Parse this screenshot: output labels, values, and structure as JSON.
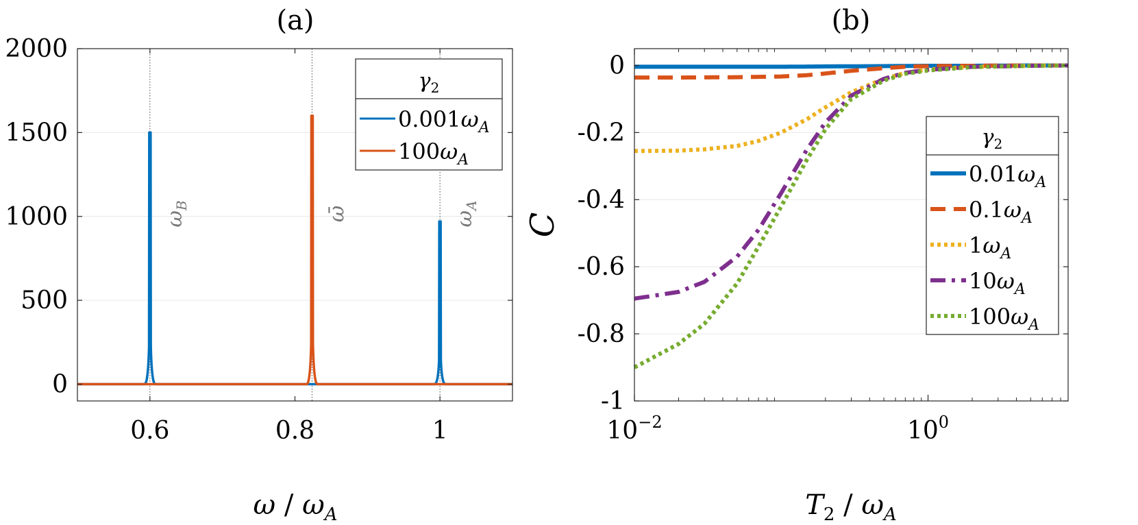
{
  "figure": {
    "panel_a_label": "(a)",
    "panel_b_label": "(b)"
  },
  "chart_data": [
    {
      "type": "line",
      "panel": "(a)",
      "title": "(a)",
      "xlabel": "ω / ω_A",
      "xlabel_parts": {
        "num": "ω",
        "sep": " / ",
        "den": "ω",
        "den_sub": "A"
      },
      "ylabel": "",
      "xlim": [
        0.5,
        1.1
      ],
      "ylim": [
        -100,
        2000
      ],
      "xticks": [
        0.6,
        0.8,
        1
      ],
      "xtick_labels": [
        "0.6",
        "0.8",
        "1"
      ],
      "yticks": [
        0,
        500,
        1000,
        1500,
        2000
      ],
      "ytick_labels": [
        "0",
        "500",
        "1000",
        "1500",
        "2000"
      ],
      "grid": "horizontal",
      "legend": {
        "placement": "top-right",
        "title": "γ2",
        "title_parts": {
          "sym": "γ",
          "sub": "2"
        },
        "entries": [
          {
            "label": "0.001ω_A",
            "coef": "0.001",
            "sym": "ω",
            "sub": "A",
            "color": "#0072BD",
            "style": "solid"
          },
          {
            "label": "100ω_A",
            "coef": "100",
            "sym": "ω",
            "sub": "A",
            "color": "#D95319",
            "style": "solid"
          }
        ]
      },
      "reference_lines": [
        {
          "x": 0.6,
          "label": "ω_B",
          "sym": "ω",
          "sub": "B"
        },
        {
          "x": 0.8236,
          "label": "ω̄",
          "sym": "ω̄",
          "sub": ""
        },
        {
          "x": 1.0,
          "label": "ω_A",
          "sym": "ω",
          "sub": "A"
        }
      ],
      "series": [
        {
          "name": "0.001ω_A",
          "color": "#0072BD",
          "baseline": 0,
          "peaks": [
            {
              "x": 0.6,
              "height": 1500
            },
            {
              "x": 1.0,
              "height": 970
            }
          ]
        },
        {
          "name": "100ω_A",
          "color": "#D95319",
          "baseline": 0,
          "peaks": [
            {
              "x": 0.8236,
              "height": 1600
            }
          ]
        }
      ]
    },
    {
      "type": "line",
      "panel": "(b)",
      "title": "(b)",
      "xlabel": "T_2 / ω_A",
      "xlabel_parts": {
        "num": "T",
        "num_sub": "2",
        "sep": " / ",
        "den": "ω",
        "den_sub": "A"
      },
      "ylabel": "C",
      "xscale": "log",
      "xlim": [
        0.01,
        9
      ],
      "ylim": [
        -1,
        0.05
      ],
      "xticks": [
        0.01,
        1
      ],
      "xtick_labels": [
        {
          "base": "10",
          "exp": "−2"
        },
        {
          "base": "10",
          "exp": "0"
        }
      ],
      "yticks": [
        0,
        -0.2,
        -0.4,
        -0.6,
        -0.8,
        -1
      ],
      "ytick_labels": [
        "0",
        "-0.2",
        "-0.4",
        "-0.6",
        "-0.8",
        "-1"
      ],
      "grid": "horizontal",
      "legend": {
        "placement": "right",
        "title": "γ2",
        "title_parts": {
          "sym": "γ",
          "sub": "2"
        },
        "entries": [
          {
            "label": "0.01ω_A",
            "coef": "0.01",
            "sym": "ω",
            "sub": "A",
            "color": "#0072BD",
            "style": "solid"
          },
          {
            "label": "0.1ω_A",
            "coef": "0.1",
            "sym": "ω",
            "sub": "A",
            "color": "#D95319",
            "style": "dashed"
          },
          {
            "label": "1ω_A",
            "coef": "1",
            "sym": "ω",
            "sub": "A",
            "color": "#EDB120",
            "style": "dotted"
          },
          {
            "label": "10ω_A",
            "coef": "10",
            "sym": "ω",
            "sub": "A",
            "color": "#7E2F8E",
            "style": "dashdot"
          },
          {
            "label": "100ω_A",
            "coef": "100",
            "sym": "ω",
            "sub": "A",
            "color": "#77AC30",
            "style": "dotted"
          }
        ]
      },
      "series": [
        {
          "name": "0.01ω_A",
          "color": "#0072BD",
          "style": "solid",
          "x": [
            0.01,
            0.02,
            0.05,
            0.1,
            0.2,
            0.5,
            1,
            2,
            5,
            9
          ],
          "y": [
            -0.004,
            -0.004,
            -0.004,
            -0.004,
            -0.003,
            -0.002,
            -0.001,
            -0.001,
            0,
            0
          ]
        },
        {
          "name": "0.1ω_A",
          "color": "#D95319",
          "style": "dashed",
          "x": [
            0.01,
            0.02,
            0.05,
            0.1,
            0.15,
            0.2,
            0.3,
            0.5,
            0.7,
            1,
            2,
            5,
            9
          ],
          "y": [
            -0.036,
            -0.036,
            -0.035,
            -0.033,
            -0.029,
            -0.024,
            -0.016,
            -0.008,
            -0.004,
            -0.002,
            -0.001,
            0,
            0
          ]
        },
        {
          "name": "1ω_A",
          "color": "#EDB120",
          "style": "dotted",
          "x": [
            0.01,
            0.02,
            0.03,
            0.05,
            0.07,
            0.1,
            0.15,
            0.2,
            0.3,
            0.5,
            0.7,
            1,
            2,
            5,
            9
          ],
          "y": [
            -0.255,
            -0.254,
            -0.25,
            -0.24,
            -0.225,
            -0.2,
            -0.16,
            -0.125,
            -0.08,
            -0.04,
            -0.022,
            -0.012,
            -0.004,
            -0.001,
            0
          ]
        },
        {
          "name": "10ω_A",
          "color": "#7E2F8E",
          "style": "dashdot",
          "x": [
            0.01,
            0.02,
            0.03,
            0.05,
            0.07,
            0.1,
            0.15,
            0.2,
            0.3,
            0.5,
            0.7,
            1,
            2,
            5,
            9
          ],
          "y": [
            -0.695,
            -0.675,
            -0.645,
            -0.57,
            -0.49,
            -0.38,
            -0.25,
            -0.17,
            -0.09,
            -0.04,
            -0.022,
            -0.013,
            -0.004,
            -0.001,
            0
          ]
        },
        {
          "name": "100ω_A",
          "color": "#77AC30",
          "style": "dotted",
          "x": [
            0.01,
            0.02,
            0.03,
            0.05,
            0.07,
            0.1,
            0.15,
            0.2,
            0.3,
            0.5,
            0.7,
            1,
            2,
            5,
            9
          ],
          "y": [
            -0.9,
            -0.83,
            -0.77,
            -0.65,
            -0.54,
            -0.42,
            -0.28,
            -0.19,
            -0.1,
            -0.045,
            -0.025,
            -0.015,
            -0.005,
            -0.001,
            0
          ]
        }
      ]
    }
  ]
}
